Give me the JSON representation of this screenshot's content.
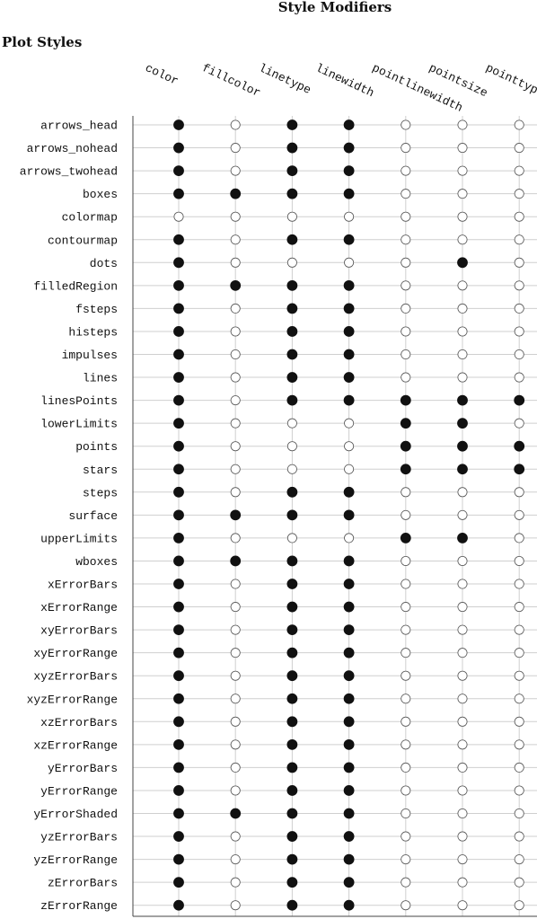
{
  "chart_data": {
    "type": "table",
    "title": "Style Modifiers",
    "row_header": "Plot Styles",
    "columns": [
      "color",
      "fillcolor",
      "linetype",
      "linewidth",
      "pointlinewidth",
      "pointsize",
      "pointtype"
    ],
    "rows": [
      {
        "name": "arrows_head",
        "values": [
          1,
          0,
          1,
          1,
          0,
          0,
          0
        ]
      },
      {
        "name": "arrows_nohead",
        "values": [
          1,
          0,
          1,
          1,
          0,
          0,
          0
        ]
      },
      {
        "name": "arrows_twohead",
        "values": [
          1,
          0,
          1,
          1,
          0,
          0,
          0
        ]
      },
      {
        "name": "boxes",
        "values": [
          1,
          1,
          1,
          1,
          0,
          0,
          0
        ]
      },
      {
        "name": "colormap",
        "values": [
          0,
          0,
          0,
          0,
          0,
          0,
          0
        ]
      },
      {
        "name": "contourmap",
        "values": [
          1,
          0,
          1,
          1,
          0,
          0,
          0
        ]
      },
      {
        "name": "dots",
        "values": [
          1,
          0,
          0,
          0,
          0,
          1,
          0
        ]
      },
      {
        "name": "filledRegion",
        "values": [
          1,
          1,
          1,
          1,
          0,
          0,
          0
        ]
      },
      {
        "name": "fsteps",
        "values": [
          1,
          0,
          1,
          1,
          0,
          0,
          0
        ]
      },
      {
        "name": "histeps",
        "values": [
          1,
          0,
          1,
          1,
          0,
          0,
          0
        ]
      },
      {
        "name": "impulses",
        "values": [
          1,
          0,
          1,
          1,
          0,
          0,
          0
        ]
      },
      {
        "name": "lines",
        "values": [
          1,
          0,
          1,
          1,
          0,
          0,
          0
        ]
      },
      {
        "name": "linesPoints",
        "values": [
          1,
          0,
          1,
          1,
          1,
          1,
          1
        ]
      },
      {
        "name": "lowerLimits",
        "values": [
          1,
          0,
          0,
          0,
          1,
          1,
          0
        ]
      },
      {
        "name": "points",
        "values": [
          1,
          0,
          0,
          0,
          1,
          1,
          1
        ]
      },
      {
        "name": "stars",
        "values": [
          1,
          0,
          0,
          0,
          1,
          1,
          1
        ]
      },
      {
        "name": "steps",
        "values": [
          1,
          0,
          1,
          1,
          0,
          0,
          0
        ]
      },
      {
        "name": "surface",
        "values": [
          1,
          1,
          1,
          1,
          0,
          0,
          0
        ]
      },
      {
        "name": "upperLimits",
        "values": [
          1,
          0,
          0,
          0,
          1,
          1,
          0
        ]
      },
      {
        "name": "wboxes",
        "values": [
          1,
          1,
          1,
          1,
          0,
          0,
          0
        ]
      },
      {
        "name": "xErrorBars",
        "values": [
          1,
          0,
          1,
          1,
          0,
          0,
          0
        ]
      },
      {
        "name": "xErrorRange",
        "values": [
          1,
          0,
          1,
          1,
          0,
          0,
          0
        ]
      },
      {
        "name": "xyErrorBars",
        "values": [
          1,
          0,
          1,
          1,
          0,
          0,
          0
        ]
      },
      {
        "name": "xyErrorRange",
        "values": [
          1,
          0,
          1,
          1,
          0,
          0,
          0
        ]
      },
      {
        "name": "xyzErrorBars",
        "values": [
          1,
          0,
          1,
          1,
          0,
          0,
          0
        ]
      },
      {
        "name": "xyzErrorRange",
        "values": [
          1,
          0,
          1,
          1,
          0,
          0,
          0
        ]
      },
      {
        "name": "xzErrorBars",
        "values": [
          1,
          0,
          1,
          1,
          0,
          0,
          0
        ]
      },
      {
        "name": "xzErrorRange",
        "values": [
          1,
          0,
          1,
          1,
          0,
          0,
          0
        ]
      },
      {
        "name": "yErrorBars",
        "values": [
          1,
          0,
          1,
          1,
          0,
          0,
          0
        ]
      },
      {
        "name": "yErrorRange",
        "values": [
          1,
          0,
          1,
          1,
          0,
          0,
          0
        ]
      },
      {
        "name": "yErrorShaded",
        "values": [
          1,
          1,
          1,
          1,
          0,
          0,
          0
        ]
      },
      {
        "name": "yzErrorBars",
        "values": [
          1,
          0,
          1,
          1,
          0,
          0,
          0
        ]
      },
      {
        "name": "yzErrorRange",
        "values": [
          1,
          0,
          1,
          1,
          0,
          0,
          0
        ]
      },
      {
        "name": "zErrorBars",
        "values": [
          1,
          0,
          1,
          1,
          0,
          0,
          0
        ]
      },
      {
        "name": "zErrorRange",
        "values": [
          1,
          0,
          1,
          1,
          0,
          0,
          0
        ]
      }
    ],
    "marker_colors": {
      "filled": "#111111",
      "empty_stroke": "#555555",
      "empty_fill": "#ffffff"
    }
  }
}
